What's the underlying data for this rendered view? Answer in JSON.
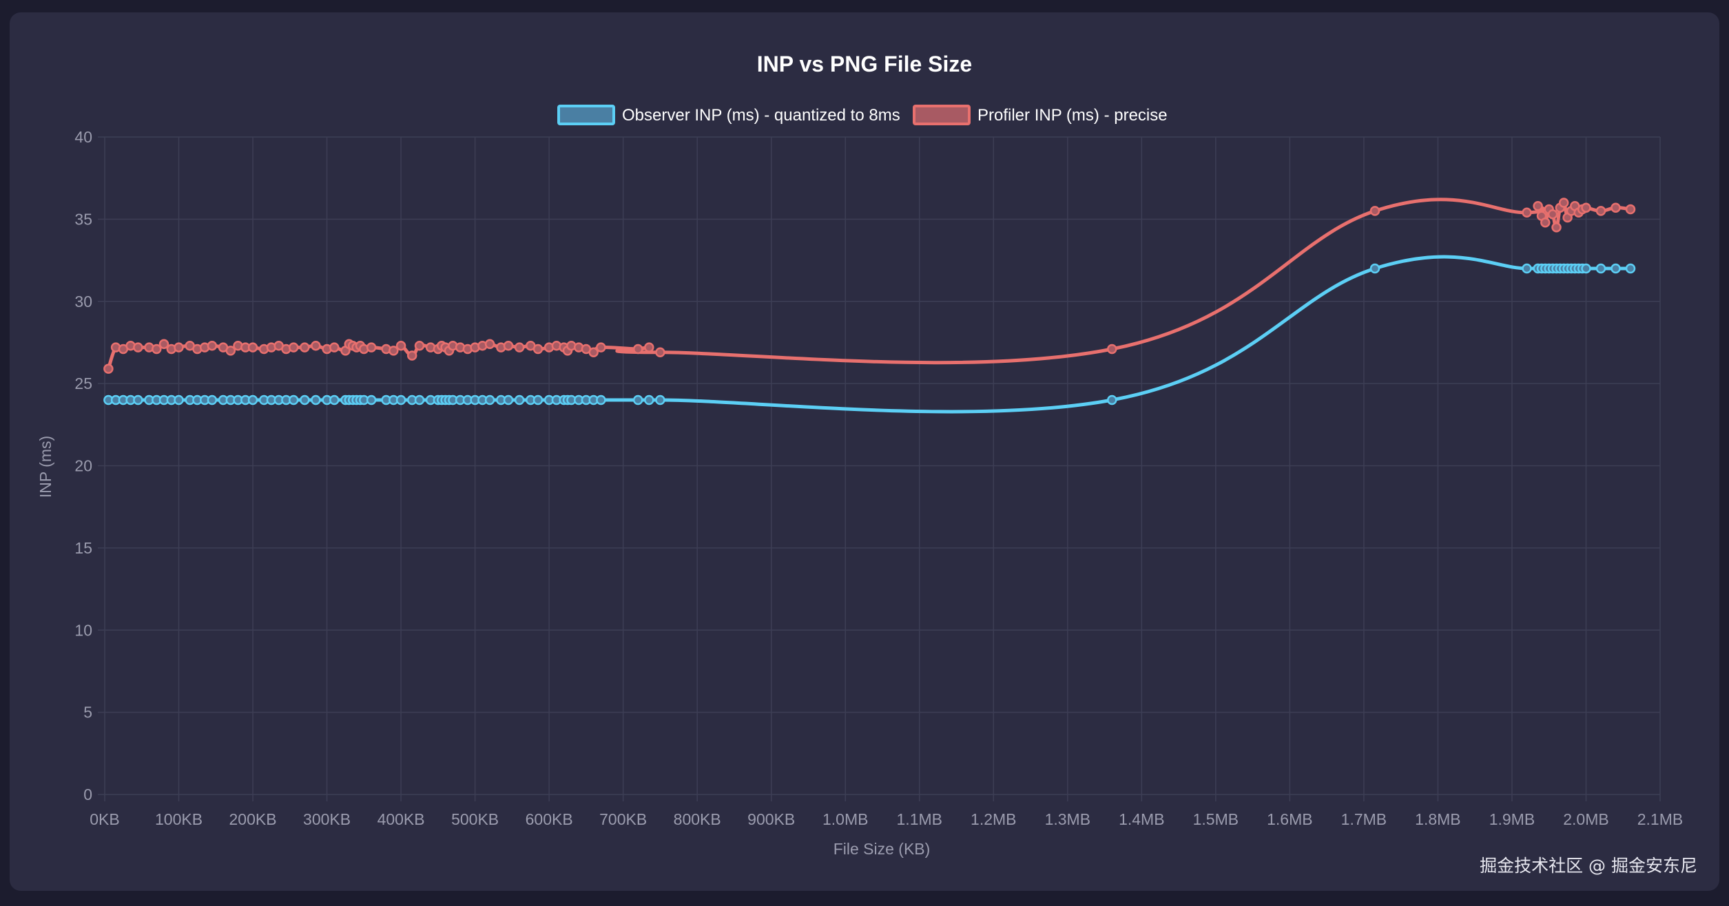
{
  "chart_data": {
    "type": "line",
    "title": "INP vs PNG File Size",
    "xlabel": "File Size (KB)",
    "ylabel": "INP (ms)",
    "xlim": [
      0,
      2100
    ],
    "ylim": [
      0,
      40
    ],
    "x_ticks": [
      {
        "value": 0,
        "label": "0KB"
      },
      {
        "value": 100,
        "label": "100KB"
      },
      {
        "value": 200,
        "label": "200KB"
      },
      {
        "value": 300,
        "label": "300KB"
      },
      {
        "value": 400,
        "label": "400KB"
      },
      {
        "value": 500,
        "label": "500KB"
      },
      {
        "value": 600,
        "label": "600KB"
      },
      {
        "value": 700,
        "label": "700KB"
      },
      {
        "value": 800,
        "label": "800KB"
      },
      {
        "value": 900,
        "label": "900KB"
      },
      {
        "value": 1000,
        "label": "1.0MB"
      },
      {
        "value": 1100,
        "label": "1.1MB"
      },
      {
        "value": 1200,
        "label": "1.2MB"
      },
      {
        "value": 1300,
        "label": "1.3MB"
      },
      {
        "value": 1400,
        "label": "1.4MB"
      },
      {
        "value": 1500,
        "label": "1.5MB"
      },
      {
        "value": 1600,
        "label": "1.6MB"
      },
      {
        "value": 1700,
        "label": "1.7MB"
      },
      {
        "value": 1800,
        "label": "1.8MB"
      },
      {
        "value": 1900,
        "label": "1.9MB"
      },
      {
        "value": 2000,
        "label": "2.0MB"
      },
      {
        "value": 2100,
        "label": "2.1MB"
      }
    ],
    "y_ticks": [
      0,
      5,
      10,
      15,
      20,
      25,
      30,
      35,
      40
    ],
    "grid": true,
    "legend_position": "top-center",
    "series": [
      {
        "name": "Observer INP (ms) - quantized to 8ms",
        "color": "#5ccff5",
        "fill": "#4a7fa3",
        "x": [
          5,
          15,
          25,
          35,
          45,
          60,
          70,
          80,
          90,
          100,
          115,
          125,
          135,
          145,
          160,
          170,
          180,
          190,
          200,
          215,
          225,
          235,
          245,
          255,
          270,
          285,
          300,
          310,
          325,
          330,
          335,
          340,
          345,
          350,
          360,
          380,
          390,
          400,
          415,
          425,
          440,
          450,
          455,
          460,
          465,
          470,
          480,
          490,
          500,
          510,
          520,
          535,
          545,
          560,
          575,
          585,
          600,
          610,
          620,
          625,
          630,
          640,
          650,
          660,
          670,
          720,
          735,
          750,
          1360,
          1715,
          1920,
          1935,
          1940,
          1945,
          1950,
          1955,
          1960,
          1965,
          1970,
          1975,
          1980,
          1985,
          1990,
          1995,
          2000,
          2020,
          2040,
          2060
        ],
        "y": [
          24,
          24,
          24,
          24,
          24,
          24,
          24,
          24,
          24,
          24,
          24,
          24,
          24,
          24,
          24,
          24,
          24,
          24,
          24,
          24,
          24,
          24,
          24,
          24,
          24,
          24,
          24,
          24,
          24,
          24,
          24,
          24,
          24,
          24,
          24,
          24,
          24,
          24,
          24,
          24,
          24,
          24,
          24,
          24,
          24,
          24,
          24,
          24,
          24,
          24,
          24,
          24,
          24,
          24,
          24,
          24,
          24,
          24,
          24,
          24,
          24,
          24,
          24,
          24,
          24,
          24,
          24,
          24,
          24,
          32,
          32,
          32,
          32,
          32,
          32,
          32,
          32,
          32,
          32,
          32,
          32,
          32,
          32,
          32,
          32,
          32,
          32,
          32
        ]
      },
      {
        "name": "Profiler INP (ms) - precise",
        "color": "#e8706e",
        "fill": "#a85a63",
        "x": [
          5,
          15,
          25,
          35,
          45,
          60,
          70,
          80,
          90,
          100,
          115,
          125,
          135,
          145,
          160,
          170,
          180,
          190,
          200,
          215,
          225,
          235,
          245,
          255,
          270,
          285,
          300,
          310,
          325,
          330,
          335,
          340,
          345,
          350,
          360,
          380,
          390,
          400,
          415,
          425,
          440,
          450,
          455,
          460,
          465,
          470,
          480,
          490,
          500,
          510,
          520,
          535,
          545,
          560,
          575,
          585,
          600,
          610,
          620,
          625,
          630,
          640,
          650,
          660,
          670,
          720,
          735,
          750,
          1360,
          1715,
          1920,
          1935,
          1940,
          1945,
          1950,
          1955,
          1960,
          1965,
          1970,
          1975,
          1980,
          1985,
          1990,
          1995,
          2000,
          2020,
          2040,
          2060
        ],
        "y": [
          25.9,
          27.2,
          27.1,
          27.3,
          27.2,
          27.2,
          27.1,
          27.4,
          27.1,
          27.2,
          27.3,
          27.1,
          27.2,
          27.3,
          27.2,
          27.0,
          27.3,
          27.2,
          27.2,
          27.1,
          27.2,
          27.3,
          27.1,
          27.2,
          27.2,
          27.3,
          27.1,
          27.2,
          27.0,
          27.4,
          27.3,
          27.2,
          27.3,
          27.1,
          27.2,
          27.1,
          27.0,
          27.3,
          26.7,
          27.3,
          27.2,
          27.1,
          27.3,
          27.2,
          27.0,
          27.3,
          27.2,
          27.1,
          27.2,
          27.3,
          27.4,
          27.2,
          27.3,
          27.2,
          27.3,
          27.1,
          27.2,
          27.3,
          27.2,
          27.0,
          27.3,
          27.2,
          27.1,
          26.9,
          27.2,
          27.1,
          27.2,
          26.9,
          27.1,
          35.5,
          35.4,
          35.8,
          35.2,
          34.8,
          35.6,
          35.3,
          34.5,
          35.7,
          36.0,
          35.1,
          35.5,
          35.8,
          35.4,
          35.6,
          35.7,
          35.5,
          35.7,
          35.6
        ]
      }
    ]
  },
  "watermark": "掘金技术社区 @ 掘金安东尼"
}
